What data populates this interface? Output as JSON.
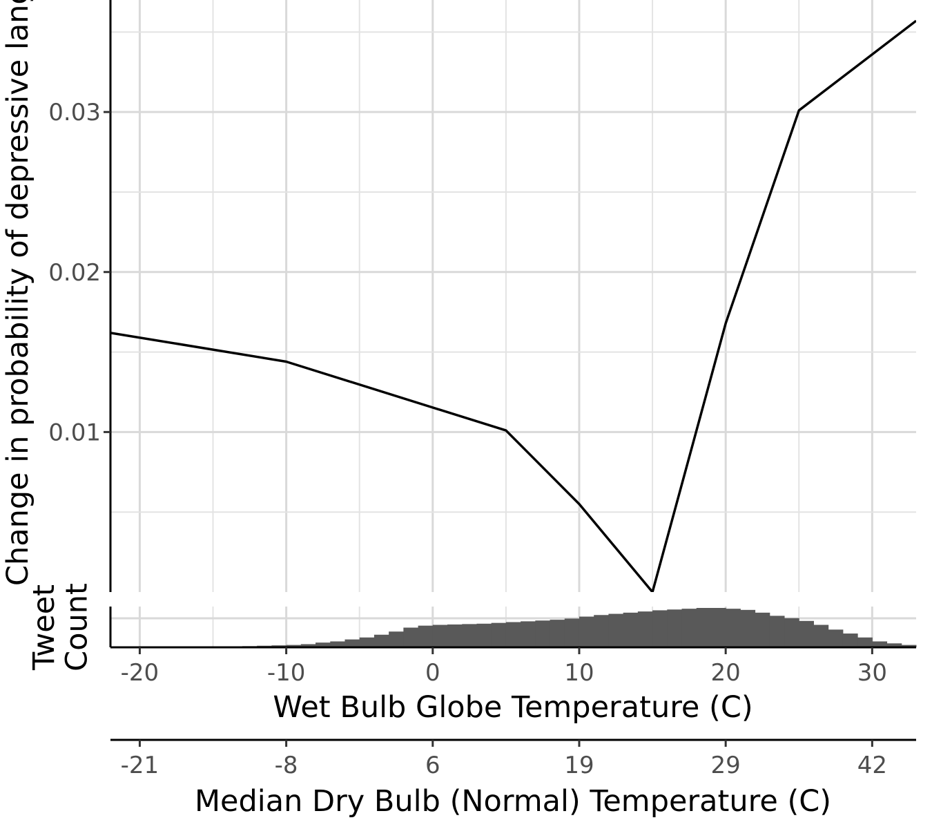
{
  "chart_data": {
    "type": "line",
    "main": {
      "ylabel": "Change in probability of depressive language",
      "x": [
        -22,
        -10,
        5,
        10,
        15,
        20,
        25,
        33
      ],
      "y": [
        0.0162,
        0.0144,
        0.0101,
        0.0055,
        0.0,
        0.0168,
        0.0301,
        0.0357
      ],
      "xlim": [
        -22,
        33
      ],
      "ylim": [
        0.0,
        0.037
      ],
      "yticks": [
        "0.01",
        "0.02",
        "0.03"
      ],
      "ytick_values": [
        0.01,
        0.02,
        0.03
      ],
      "grid": true
    },
    "histogram": {
      "ylabel": "Tweet\nCount",
      "bin_width": 1,
      "bin_start": -22,
      "counts": [
        0,
        0,
        0,
        0,
        0,
        0,
        0,
        0.01,
        0.02,
        0.03,
        0.04,
        0.05,
        0.06,
        0.08,
        0.12,
        0.15,
        0.2,
        0.25,
        0.32,
        0.4,
        0.5,
        0.55,
        0.57,
        0.58,
        0.59,
        0.6,
        0.62,
        0.64,
        0.66,
        0.68,
        0.7,
        0.73,
        0.78,
        0.82,
        0.85,
        0.88,
        0.91,
        0.94,
        0.96,
        0.98,
        1.0,
        1.0,
        0.98,
        0.95,
        0.88,
        0.8,
        0.74,
        0.67,
        0.57,
        0.45,
        0.35,
        0.25,
        0.15,
        0.1,
        0.06
      ]
    },
    "x_axis": {
      "label": "Wet Bulb Globe Temperature (C)",
      "ticks": [
        "-20",
        "-10",
        "0",
        "10",
        "20",
        "30"
      ],
      "tick_values": [
        -20,
        -10,
        0,
        10,
        20,
        30
      ]
    },
    "secondary_x_axis": {
      "label": "Median Dry Bulb (Normal) Temperature (C)",
      "ticks": [
        "-21",
        "-8",
        "6",
        "19",
        "29",
        "42"
      ],
      "tick_positions": [
        -20,
        -10,
        0,
        10,
        20,
        30
      ]
    }
  }
}
